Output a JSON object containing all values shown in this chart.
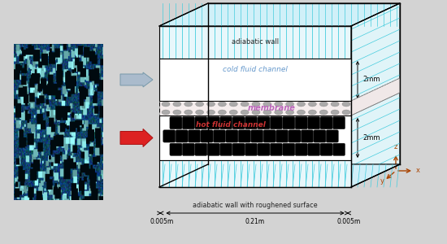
{
  "bg_color": "#d3d3d3",
  "top_wall_label": "adiabatic wall",
  "bottom_wall_label": "adiabatic wall with roughened surface",
  "cold_label": "cold fluid channel",
  "membrane_label": "membrane",
  "hot_label": "hot fluid channel",
  "dim_2mm_top": "2mm",
  "dim_2mm_bot": "2mm",
  "dim_005_left": "0.005m",
  "dim_021": "0.21m",
  "dim_005_right": "0.005m",
  "cold_color": "#6699cc",
  "membrane_color": "#bb66bb",
  "hot_color": "#cc3333",
  "cyan_color": "#44ccdd",
  "gray_arrow_color": "#99aabb",
  "red_arrow_color": "#dd2222"
}
